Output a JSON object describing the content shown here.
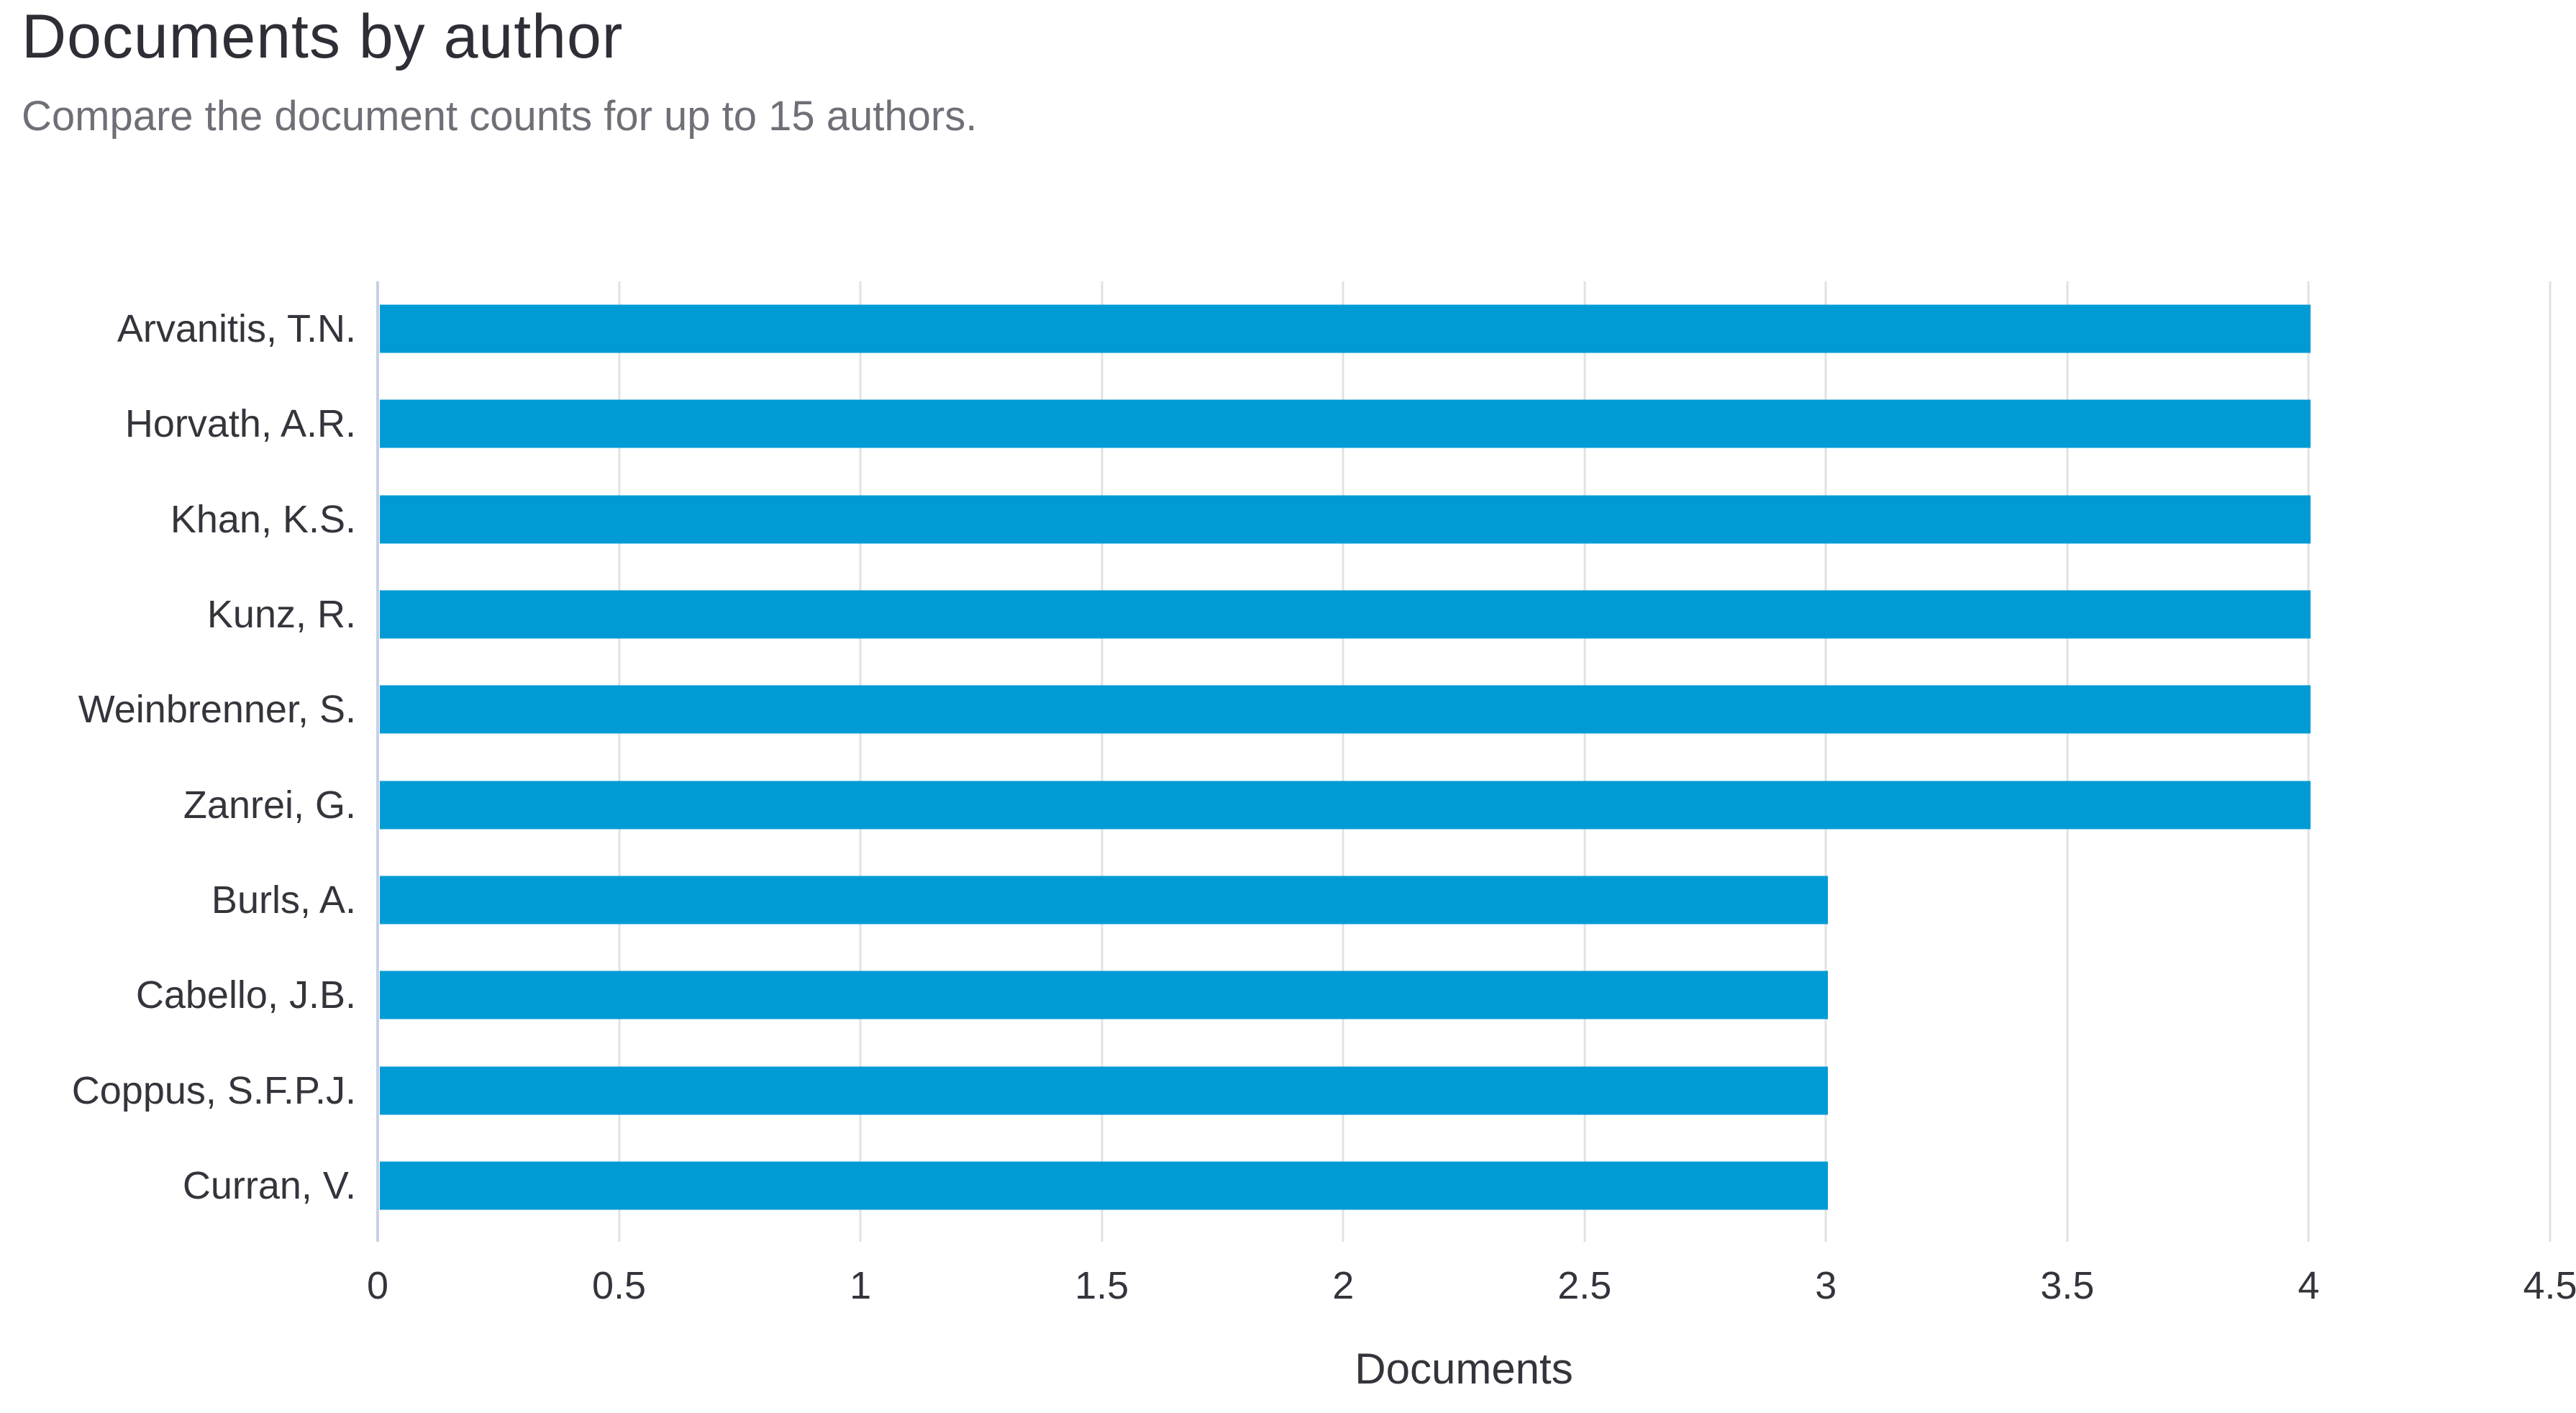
{
  "header": {
    "title": "Documents by author",
    "subtitle": "Compare the document counts for up to 15 authors."
  },
  "chart_data": {
    "type": "bar",
    "orientation": "horizontal",
    "title": "Documents by author",
    "subtitle": "Compare the document counts for up to 15 authors.",
    "categories": [
      "Arvanitis, T.N.",
      "Horvath, A.R.",
      "Khan, K.S.",
      "Kunz, R.",
      "Weinbrenner, S.",
      "Zanrei, G.",
      "Burls, A.",
      "Cabello, J.B.",
      "Coppus, S.F.P.J.",
      "Curran, V."
    ],
    "values": [
      4,
      4,
      4,
      4,
      4,
      4,
      3,
      3,
      3,
      3
    ],
    "xlabel": "Documents",
    "ylabel": "",
    "xlim": [
      0,
      4.5
    ],
    "xticks": [
      0,
      0.5,
      1,
      1.5,
      2,
      2.5,
      3,
      3.5,
      4,
      4.5
    ],
    "grid": true,
    "legend": false,
    "colors": {
      "bar": "#009bd5",
      "gridline": "#e2e2e2",
      "axis_line": "#c7d0e4",
      "tick_label": "#34343c",
      "title": "#2e2e36",
      "subtitle": "#6f6f77"
    }
  }
}
